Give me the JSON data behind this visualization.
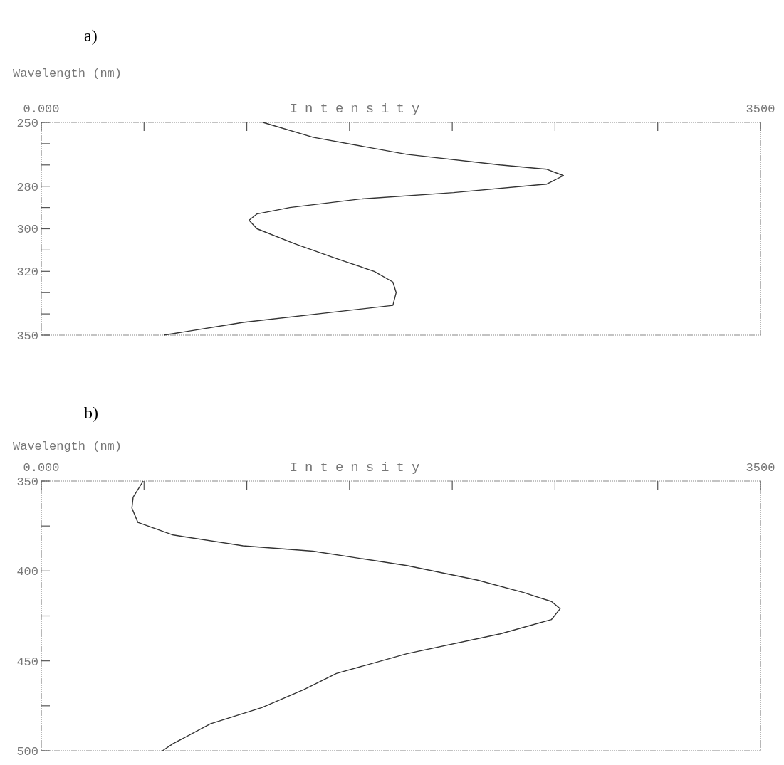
{
  "chart_data": [
    {
      "type": "line",
      "title": "a)",
      "xlabel": "Intensity",
      "ylabel": "Wavelength (nm)",
      "xlim": [
        0,
        3500
      ],
      "xticks": [
        {
          "value": 0,
          "label": "0.000"
        },
        {
          "value": 500,
          "label": null
        },
        {
          "value": 1000,
          "label": null
        },
        {
          "value": 1500,
          "label": null
        },
        {
          "value": 2000,
          "label": null
        },
        {
          "value": 2500,
          "label": null
        },
        {
          "value": 3000,
          "label": null
        },
        3500
      ],
      "ylim": [
        350,
        250
      ],
      "yticks": [
        250,
        {
          "value": 260,
          "label": null
        },
        {
          "value": 270,
          "label": null
        },
        280,
        {
          "value": 290,
          "label": null
        },
        300,
        {
          "value": 310,
          "label": null
        },
        320,
        {
          "value": 330,
          "label": null
        },
        {
          "value": 340,
          "label": null
        },
        350
      ],
      "series": [
        {
          "color": "#333333",
          "x": [
            1079,
            1322,
            1779,
            2233,
            2460,
            2541,
            2460,
            2006,
            1552,
            1209,
            1050,
            1011,
            1050,
            1232,
            1436,
            1620,
            1711,
            1727,
            1711,
            1436,
            982,
            596
          ],
          "values": [
            250,
            257,
            265,
            270,
            272,
            275,
            279,
            283,
            286,
            290,
            293,
            296,
            300,
            307,
            314,
            320,
            325,
            330,
            336,
            339,
            344,
            350
          ]
        }
      ]
    },
    {
      "type": "line",
      "title": "b)",
      "xlabel": "Intensity",
      "ylabel": "Wavelength (nm)",
      "xlim": [
        0,
        3500
      ],
      "xticks": [
        {
          "value": 0,
          "label": "0.000"
        },
        {
          "value": 500,
          "label": null
        },
        {
          "value": 1000,
          "label": null
        },
        {
          "value": 1500,
          "label": null
        },
        {
          "value": 2000,
          "label": null
        },
        {
          "value": 2500,
          "label": null
        },
        {
          "value": 3000,
          "label": null
        },
        3500
      ],
      "ylim": [
        500,
        350
      ],
      "yticks": [
        350,
        {
          "value": 375,
          "label": null
        },
        400,
        {
          "value": 425,
          "label": null
        },
        450,
        {
          "value": 475,
          "label": null
        },
        500
      ],
      "series": [
        {
          "color": "#333333",
          "x": [
            496,
            447,
            441,
            470,
            642,
            982,
            1322,
            1779,
            2120,
            2347,
            2483,
            2525,
            2483,
            2233,
            1779,
            1436,
            1277,
            1073,
            823,
            642,
            590
          ],
          "values": [
            350,
            359,
            365,
            373,
            380,
            386,
            389,
            397,
            405,
            412,
            417,
            421,
            427,
            435,
            446,
            457,
            466,
            476,
            485,
            496,
            500
          ]
        }
      ]
    }
  ]
}
